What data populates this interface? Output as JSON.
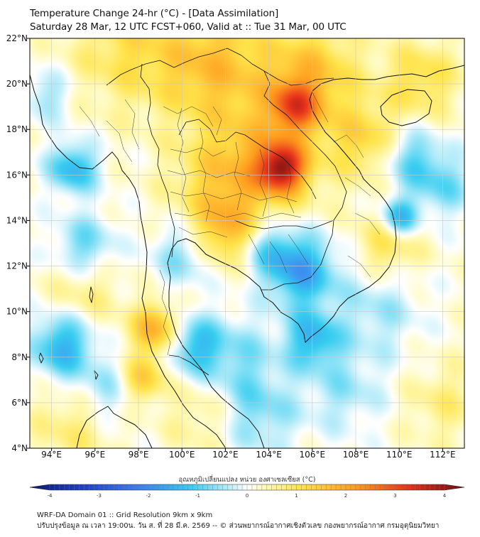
{
  "header": {
    "title": "Temperature Change 24-hr (°C) - [Data Assimilation]",
    "subtitle": "Saturday 28 Mar, 12 UTC FCST+060, Valid at :: Tue 31 Mar, 00 UTC"
  },
  "map": {
    "lat_range": [
      4,
      22
    ],
    "lon_range": [
      93,
      113
    ],
    "lat_ticks": [
      {
        "v": 22,
        "label": "22°N"
      },
      {
        "v": 20,
        "label": "20°N"
      },
      {
        "v": 18,
        "label": "18°N"
      },
      {
        "v": 16,
        "label": "16°N"
      },
      {
        "v": 14,
        "label": "14°N"
      },
      {
        "v": 12,
        "label": "12°N"
      },
      {
        "v": 10,
        "label": "10°N"
      },
      {
        "v": 8,
        "label": "8°N"
      },
      {
        "v": 6,
        "label": "6°N"
      },
      {
        "v": 4,
        "label": "4°N"
      }
    ],
    "lon_ticks": [
      {
        "v": 94,
        "label": "94°E"
      },
      {
        "v": 96,
        "label": "96°E"
      },
      {
        "v": 98,
        "label": "98°E"
      },
      {
        "v": 100,
        "label": "100°E"
      },
      {
        "v": 102,
        "label": "102°E"
      },
      {
        "v": 104,
        "label": "104°E"
      },
      {
        "v": 106,
        "label": "106°E"
      },
      {
        "v": 108,
        "label": "108°E"
      },
      {
        "v": 110,
        "label": "110°E"
      },
      {
        "v": 112,
        "label": "112°E"
      }
    ]
  },
  "colorbar": {
    "label": "อุณหภูมิเปลี่ยนแปลง หน่วย องศาเซลเซียส (°C)",
    "min": -4,
    "max": 4,
    "tick_labels": [
      "-4",
      "-3",
      "-2",
      "-1",
      "0",
      "1",
      "2",
      "3",
      "4"
    ]
  },
  "footer": {
    "line1": "WRF-DA Domain 01 :: Grid Resolution 9km x 9km",
    "line2": "ปรับปรุงข้อมูล ณ เวลา 19:00น. วัน ส. ที่ 28 มี.ค. 2569 -- © ส่วนพยากรณ์อากาศเชิงตัวเลข กองพยากรณ์อากาศ กรมอุตุนิยมวิทยา"
  },
  "field": {
    "background": 0.15,
    "anomalies": [
      {
        "lon": 104.6,
        "lat": 16.3,
        "amp": 2.6,
        "r": 0.75
      },
      {
        "lon": 104.0,
        "lat": 16.8,
        "amp": 1.0,
        "r": 1.8
      },
      {
        "lon": 105.2,
        "lat": 19.0,
        "amp": 1.8,
        "r": 0.8
      },
      {
        "lon": 106.0,
        "lat": 20.5,
        "amp": 1.2,
        "r": 1.5
      },
      {
        "lon": 101.5,
        "lat": 20.8,
        "amp": 1.3,
        "r": 1.8
      },
      {
        "lon": 97.5,
        "lat": 21.5,
        "amp": 0.8,
        "r": 1.8
      },
      {
        "lon": 101.8,
        "lat": 15.5,
        "amp": 0.9,
        "r": 1.6
      },
      {
        "lon": 102.0,
        "lat": 13.5,
        "amp": 1.1,
        "r": 1.0
      },
      {
        "lon": 98.8,
        "lat": 9.2,
        "amp": 1.6,
        "r": 0.8
      },
      {
        "lon": 98.2,
        "lat": 7.0,
        "amp": 1.2,
        "r": 0.7
      },
      {
        "lon": 108.5,
        "lat": 17.5,
        "amp": 1.0,
        "r": 1.2
      },
      {
        "lon": 109.5,
        "lat": 13.0,
        "amp": 0.9,
        "r": 1.0
      },
      {
        "lon": 95.5,
        "lat": 11.0,
        "amp": 0.6,
        "r": 1.2
      },
      {
        "lon": 111.0,
        "lat": 20.2,
        "amp": 0.9,
        "r": 1.2
      },
      {
        "lon": 112.0,
        "lat": 6.0,
        "amp": 0.5,
        "r": 1.2
      },
      {
        "lon": 95.0,
        "lat": 5.0,
        "amp": 0.6,
        "r": 1.3
      },
      {
        "lon": 101.0,
        "lat": 5.5,
        "amp": 0.5,
        "r": 1.2
      },
      {
        "lon": 95.0,
        "lat": 16.3,
        "amp": -1.4,
        "r": 0.8
      },
      {
        "lon": 105.5,
        "lat": 11.8,
        "amp": -1.6,
        "r": 1.1
      },
      {
        "lon": 104.0,
        "lat": 12.8,
        "amp": -0.9,
        "r": 0.9
      },
      {
        "lon": 106.0,
        "lat": 8.8,
        "amp": -1.3,
        "r": 0.9
      },
      {
        "lon": 110.0,
        "lat": 14.1,
        "amp": -1.6,
        "r": 0.6
      },
      {
        "lon": 110.5,
        "lat": 16.8,
        "amp": -1.0,
        "r": 1.0
      },
      {
        "lon": 94.5,
        "lat": 8.5,
        "amp": -1.5,
        "r": 1.0
      },
      {
        "lon": 95.5,
        "lat": 12.8,
        "amp": -1.0,
        "r": 1.0
      },
      {
        "lon": 100.5,
        "lat": 8.5,
        "amp": -1.2,
        "r": 0.9
      },
      {
        "lon": 100.0,
        "lat": 12.5,
        "amp": -0.8,
        "r": 1.0
      },
      {
        "lon": 102.5,
        "lat": 8.0,
        "amp": -0.7,
        "r": 1.3
      },
      {
        "lon": 103.5,
        "lat": 5.5,
        "amp": -0.8,
        "r": 1.3
      },
      {
        "lon": 109.0,
        "lat": 10.0,
        "amp": -0.6,
        "r": 1.4
      },
      {
        "lon": 112.0,
        "lat": 15.5,
        "amp": -0.8,
        "r": 1.0
      },
      {
        "lon": 96.5,
        "lat": 6.5,
        "amp": -0.7,
        "r": 1.0
      },
      {
        "lon": 107.5,
        "lat": 6.5,
        "amp": -0.6,
        "r": 1.3
      },
      {
        "lon": 93.8,
        "lat": 19.5,
        "amp": -0.7,
        "r": 0.8
      }
    ]
  }
}
